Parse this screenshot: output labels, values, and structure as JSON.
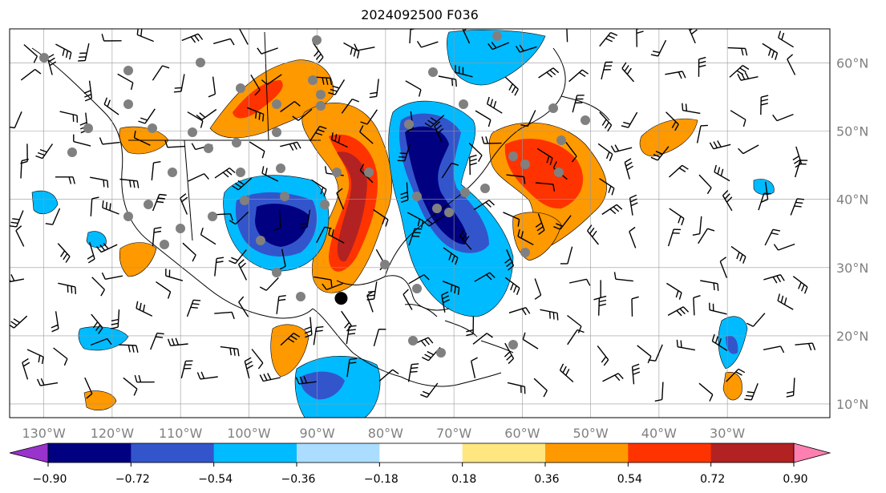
{
  "title": "2024092500 F036",
  "map": {
    "lon_range": [
      -135,
      -15
    ],
    "lat_range": [
      8,
      65
    ],
    "lon_ticks": [
      {
        "value": -130,
        "label": "130°W"
      },
      {
        "value": -120,
        "label": "120°W"
      },
      {
        "value": -110,
        "label": "110°W"
      },
      {
        "value": -100,
        "label": "100°W"
      },
      {
        "value": -90,
        "label": "90°W"
      },
      {
        "value": -80,
        "label": "80°W"
      },
      {
        "value": -70,
        "label": "70°W"
      },
      {
        "value": -60,
        "label": "60°W"
      },
      {
        "value": -50,
        "label": "50°W"
      },
      {
        "value": -40,
        "label": "40°W"
      },
      {
        "value": -30,
        "label": "30°W"
      }
    ],
    "lat_ticks": [
      {
        "value": 60,
        "label": "60°N"
      },
      {
        "value": 50,
        "label": "50°N"
      },
      {
        "value": 40,
        "label": "40°N"
      },
      {
        "value": 30,
        "label": "30°N"
      },
      {
        "value": 20,
        "label": "20°N"
      },
      {
        "value": 10,
        "label": "10°N"
      }
    ],
    "grid": true,
    "marker": {
      "lon": -86.5,
      "lat": 25.5
    }
  },
  "colorbar": {
    "levels": [
      -0.9,
      -0.72,
      -0.54,
      -0.36,
      -0.18,
      0.18,
      0.36,
      0.54,
      0.72,
      0.9
    ],
    "tick_labels": [
      "−0.90",
      "−0.72",
      "−0.54",
      "−0.36",
      "−0.18",
      "0.18",
      "0.36",
      "0.54",
      "0.72",
      "0.90"
    ],
    "colors": [
      "#9933cc",
      "#000080",
      "#3355cc",
      "#00bbff",
      "#aaddff",
      "#ffffff",
      "#ffe680",
      "#ff9900",
      "#ff3300",
      "#b22222",
      "#ff80b0"
    ],
    "extend": "both"
  }
}
